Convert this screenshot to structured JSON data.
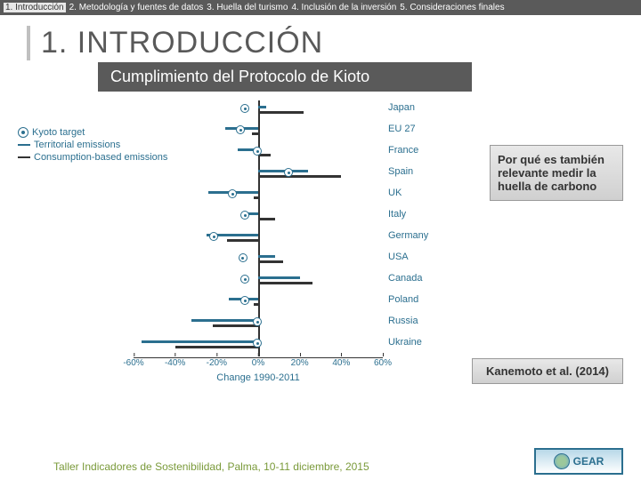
{
  "nav": {
    "items": [
      {
        "label": "1. Introducción",
        "active": true
      },
      {
        "label": "2. Metodología y fuentes de datos",
        "active": false
      },
      {
        "label": "3. Huella del turismo",
        "active": false
      },
      {
        "label": "4. Inclusión de la inversión",
        "active": false
      },
      {
        "label": "5. Consideraciones finales",
        "active": false
      }
    ]
  },
  "title": "1. INTRODUCCIÓN",
  "subtitle": "Cumplimiento del Protocolo de Kioto",
  "legend": {
    "kyoto": "Kyoto target",
    "territorial": "Territorial emissions",
    "consumption": "Consumption-based emissions"
  },
  "chart": {
    "type": "horizontal-bar-dot",
    "xlim": [
      -60,
      60
    ],
    "xtick_step": 20,
    "xlabel": "Change 1990-2011",
    "zero_color": "#333333",
    "territorial_color": "#2b6f8f",
    "consumption_color": "#333333",
    "label_color": "#2b6f8f",
    "label_fontsize": 11,
    "countries": [
      {
        "name": "Japan",
        "kyoto": -6,
        "territorial": 4,
        "consumption": 22
      },
      {
        "name": "EU 27",
        "kyoto": -8,
        "territorial": -16,
        "consumption": -3
      },
      {
        "name": "France",
        "kyoto": 0,
        "territorial": -10,
        "consumption": 6
      },
      {
        "name": "Spain",
        "kyoto": 15,
        "territorial": 24,
        "consumption": 40
      },
      {
        "name": "UK",
        "kyoto": -12,
        "territorial": -24,
        "consumption": -2
      },
      {
        "name": "Italy",
        "kyoto": -6,
        "territorial": -7,
        "consumption": 8
      },
      {
        "name": "Germany",
        "kyoto": -21,
        "territorial": -25,
        "consumption": -15
      },
      {
        "name": "USA",
        "kyoto": -7,
        "territorial": 8,
        "consumption": 12
      },
      {
        "name": "Canada",
        "kyoto": -6,
        "territorial": 20,
        "consumption": 26
      },
      {
        "name": "Poland",
        "kyoto": -6,
        "territorial": -14,
        "consumption": -2
      },
      {
        "name": "Russia",
        "kyoto": 0,
        "territorial": -32,
        "consumption": -22
      },
      {
        "name": "Ukraine",
        "kyoto": 0,
        "territorial": -56,
        "consumption": -40
      }
    ]
  },
  "callout1": "Por qué es también relevante medir la huella de carbono",
  "callout2": "Kanemoto et al. (2014)",
  "footer": "Taller Indicadores de Sostenibilidad,  Palma, 10-11 diciembre, 2015",
  "logo": "GEAR"
}
